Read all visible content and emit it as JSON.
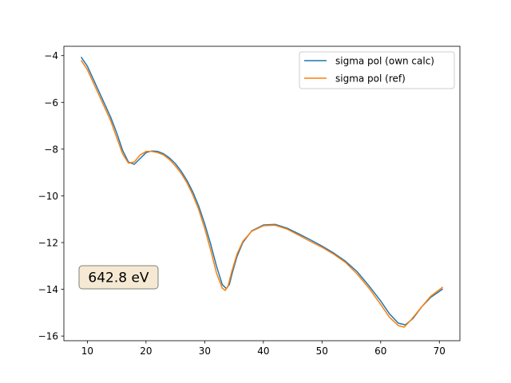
{
  "chart_data": {
    "type": "line",
    "title": "",
    "xlabel": "",
    "ylabel": "",
    "xlim": [
      6,
      73.5
    ],
    "ylim": [
      -16.2,
      -3.6
    ],
    "xticks": [
      10,
      20,
      30,
      40,
      50,
      60,
      70
    ],
    "yticks": [
      -4,
      -6,
      -8,
      -10,
      -12,
      -14,
      -16
    ],
    "xtick_labels": [
      "10",
      "20",
      "30",
      "40",
      "50",
      "60",
      "70"
    ],
    "ytick_labels": [
      "−4",
      "−6",
      "−8",
      "−10",
      "−12",
      "−14",
      "−16"
    ],
    "grid": false,
    "legend_position": "top-right",
    "annotation": "642.8 eV",
    "series": [
      {
        "name": "sigma pol (own calc)",
        "color": "#1f77b4",
        "x": [
          9,
          10,
          12,
          14,
          15,
          16,
          17,
          18,
          19,
          20,
          21,
          22,
          23,
          24,
          25,
          26,
          27,
          28,
          29,
          30,
          31,
          32,
          33,
          33.7,
          34.2,
          34.7,
          35.5,
          36.5,
          38,
          40,
          42,
          44,
          46,
          48,
          50,
          52,
          54,
          56,
          58,
          60,
          61.5,
          63,
          64.2,
          65.5,
          67,
          68.5,
          70.5
        ],
        "y": [
          -4.08,
          -4.45,
          -5.55,
          -6.65,
          -7.3,
          -8.05,
          -8.55,
          -8.65,
          -8.4,
          -8.15,
          -8.08,
          -8.1,
          -8.2,
          -8.38,
          -8.62,
          -8.95,
          -9.35,
          -9.85,
          -10.45,
          -11.2,
          -12.05,
          -13.0,
          -13.8,
          -13.97,
          -13.8,
          -13.3,
          -12.6,
          -12.0,
          -11.5,
          -11.25,
          -11.22,
          -11.38,
          -11.62,
          -11.88,
          -12.15,
          -12.45,
          -12.8,
          -13.25,
          -13.85,
          -14.5,
          -15.05,
          -15.45,
          -15.52,
          -15.25,
          -14.75,
          -14.35,
          -14.0
        ]
      },
      {
        "name": "sigma pol (ref)",
        "color": "#ff7f0e",
        "x": [
          9,
          10,
          12,
          14,
          15,
          16,
          17,
          18,
          19,
          20,
          21,
          22,
          23,
          24,
          25,
          26,
          27,
          28,
          29,
          30,
          31,
          32,
          33,
          33.5,
          34,
          34.6,
          35.5,
          36.5,
          38,
          40,
          42,
          44,
          46,
          48,
          50,
          52,
          54,
          56,
          58,
          60,
          61.5,
          63,
          64,
          65.2,
          67,
          68.5,
          70.5
        ],
        "y": [
          -4.22,
          -4.6,
          -5.7,
          -6.8,
          -7.5,
          -8.2,
          -8.6,
          -8.55,
          -8.25,
          -8.1,
          -8.1,
          -8.15,
          -8.25,
          -8.45,
          -8.72,
          -9.05,
          -9.45,
          -9.98,
          -10.6,
          -11.4,
          -12.3,
          -13.3,
          -13.95,
          -14.05,
          -13.85,
          -13.25,
          -12.5,
          -11.95,
          -11.52,
          -11.28,
          -11.26,
          -11.42,
          -11.68,
          -11.95,
          -12.2,
          -12.5,
          -12.85,
          -13.35,
          -13.95,
          -14.65,
          -15.2,
          -15.55,
          -15.62,
          -15.3,
          -14.75,
          -14.3,
          -13.92
        ]
      }
    ]
  }
}
